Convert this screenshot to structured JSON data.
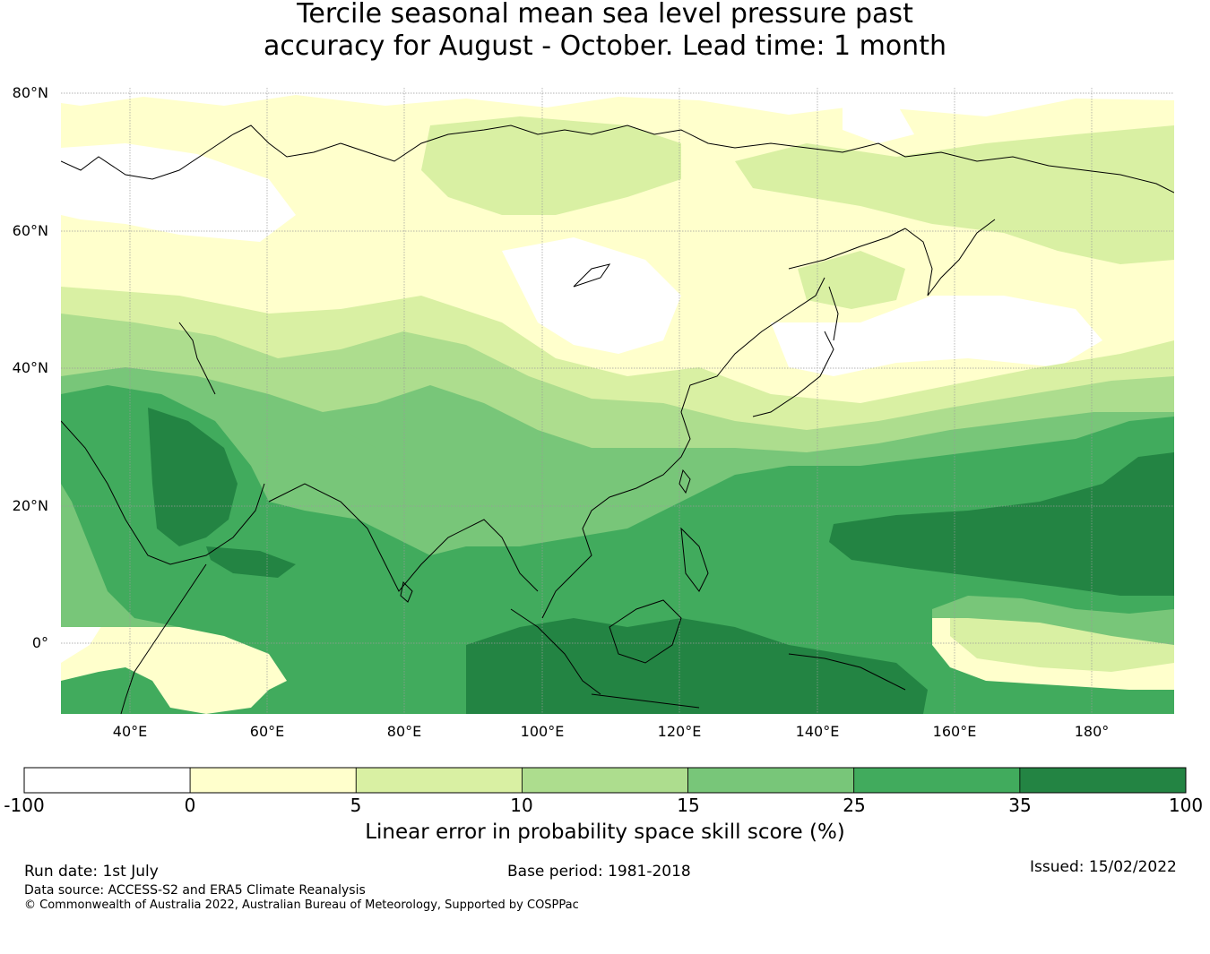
{
  "title_line1": "Tercile seasonal mean sea level pressure past",
  "title_line2": "accuracy for August - October. Lead time: 1 month",
  "map": {
    "lat_labels": [
      "80°N",
      "60°N",
      "40°N",
      "20°N",
      "0°"
    ],
    "lon_labels": [
      "40°E",
      "60°E",
      "80°E",
      "100°E",
      "120°E",
      "140°E",
      "160°E",
      "180°"
    ],
    "colors": {
      "class_neg": "#ffffff",
      "class_0_5": "#ffffcc",
      "class_5_10": "#d9f0a3",
      "class_10_15": "#addd8e",
      "class_15_25": "#78c679",
      "class_25_35": "#41ab5d",
      "class_35_100": "#238443",
      "coast": "#000000",
      "grid": "#9a9a9a"
    }
  },
  "colorbar": {
    "ticks": [
      "-100",
      "0",
      "5",
      "10",
      "15",
      "25",
      "35",
      "100"
    ],
    "colors": [
      "#ffffff",
      "#ffffcc",
      "#d9f0a3",
      "#addd8e",
      "#78c679",
      "#41ab5d",
      "#238443"
    ],
    "label": "Linear error in probability space skill score (%)"
  },
  "footer": {
    "run_date": "Run date: 1st July",
    "base_period": "Base period: 1981-2018",
    "issued": "Issued: 15/02/2022",
    "data_source": "Data source: ACCESS-S2 and ERA5 Climate Reanalysis",
    "copyright": "© Commonwealth of Australia 2022, Australian Bureau of Meteorology, Supported by COSPPac"
  }
}
